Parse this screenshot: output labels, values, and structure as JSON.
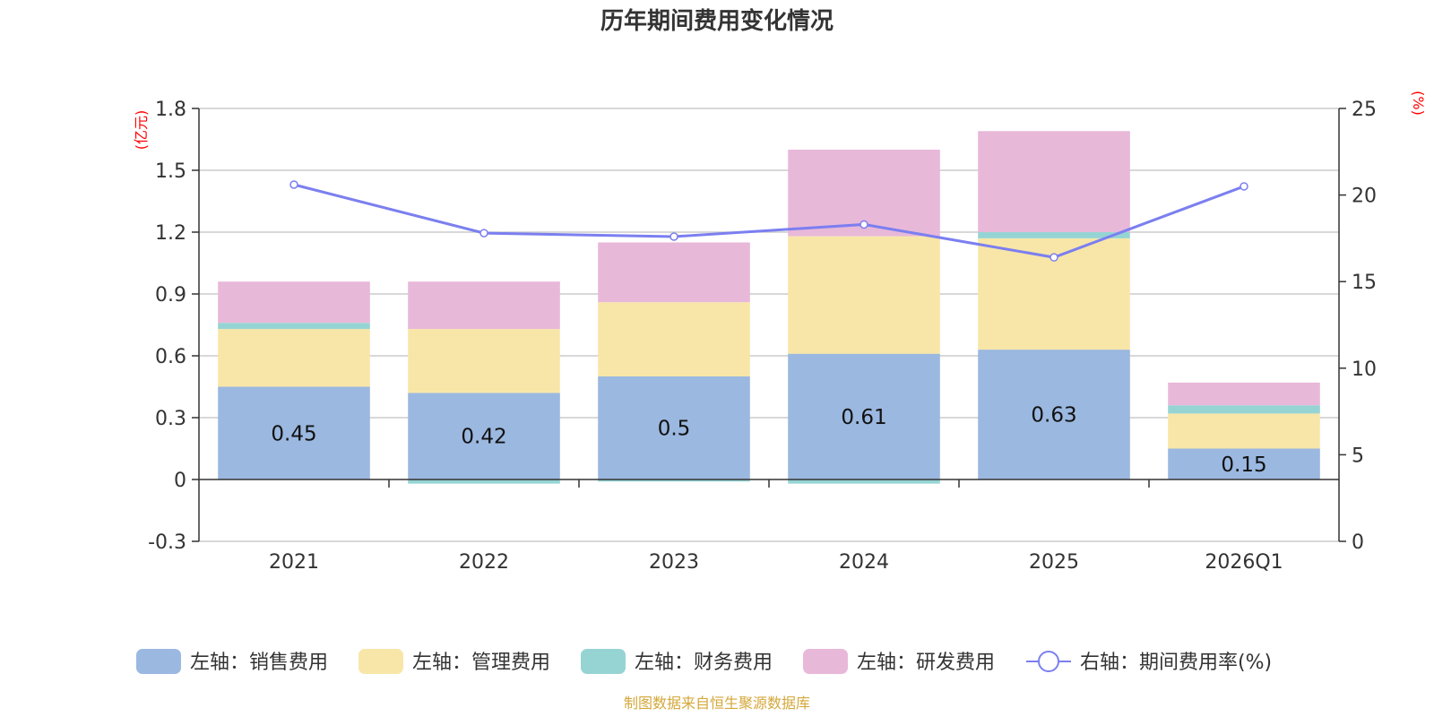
{
  "chart_data": {
    "type": "bar",
    "title": "历年期间费用变化情况",
    "categories": [
      "2021",
      "2022",
      "2023",
      "2024",
      "2025",
      "2026Q1"
    ],
    "left_axis": {
      "unit_label": "(亿元)",
      "ylim": [
        -0.3,
        1.8
      ],
      "ticks": [
        -0.3,
        0,
        0.3,
        0.6,
        0.9,
        1.2,
        1.5,
        1.8
      ],
      "tick_labels": [
        "-0.3",
        "0",
        "0.3",
        "0.6",
        "0.9",
        "1.2",
        "1.5",
        "1.8"
      ]
    },
    "right_axis": {
      "unit_label": "(%)",
      "ylim": [
        0,
        25
      ],
      "ticks": [
        0,
        5,
        10,
        15,
        20,
        25
      ],
      "tick_labels": [
        "0",
        "5",
        "10",
        "15",
        "20",
        "25"
      ]
    },
    "series": [
      {
        "name": "左轴：销售费用",
        "type": "bar",
        "axis": "left",
        "color": "#9bb8e0",
        "values": [
          0.45,
          0.42,
          0.5,
          0.61,
          0.63,
          0.15
        ],
        "value_labels": [
          "0.45",
          "0.42",
          "0.5",
          "0.61",
          "0.63",
          "0.15"
        ]
      },
      {
        "name": "左轴：管理费用",
        "type": "bar",
        "axis": "left",
        "color": "#f8e6a8",
        "values": [
          0.28,
          0.31,
          0.36,
          0.57,
          0.54,
          0.17
        ]
      },
      {
        "name": "左轴：财务费用",
        "type": "bar",
        "axis": "left",
        "color": "#96d4d4",
        "values": [
          0.03,
          -0.02,
          -0.01,
          -0.02,
          0.03,
          0.04
        ]
      },
      {
        "name": "左轴：研发费用",
        "type": "bar",
        "axis": "left",
        "color": "#e8b8d9",
        "values": [
          0.2,
          0.23,
          0.29,
          0.42,
          0.49,
          0.11
        ]
      },
      {
        "name": "右轴：期间费用率(%)",
        "type": "line",
        "axis": "right",
        "color": "#7b7ff0",
        "values": [
          20.6,
          17.8,
          17.6,
          18.3,
          16.4,
          20.5
        ]
      }
    ],
    "grid": true,
    "legend_position": "bottom",
    "source_note": "制图数据来自恒生聚源数据库",
    "source_color": "#d4a73a"
  }
}
